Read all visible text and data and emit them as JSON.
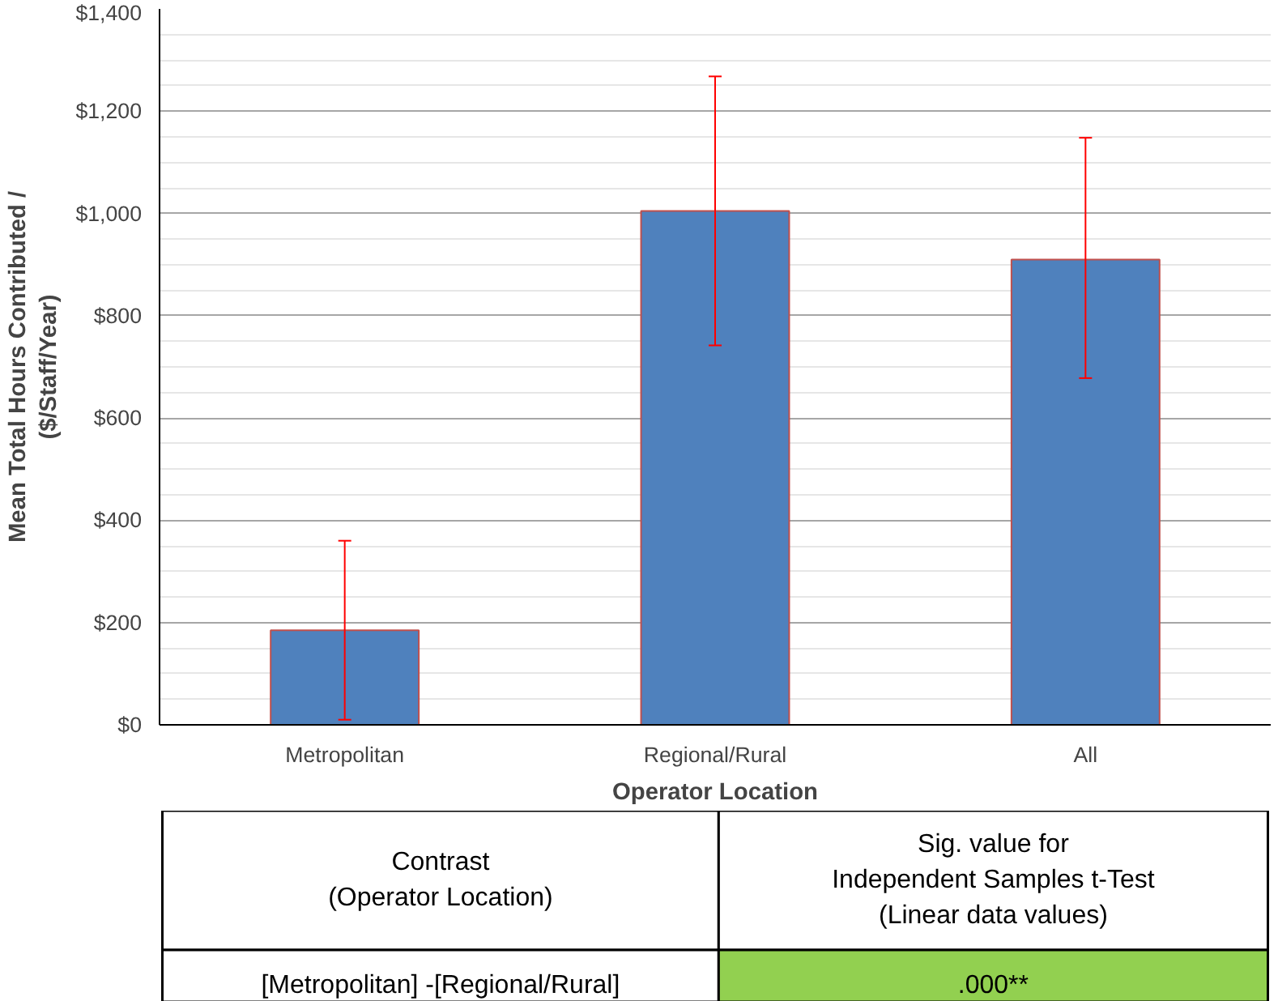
{
  "chart_data": {
    "type": "bar",
    "xlabel": "Operator Location",
    "ylabel": "Mean Total Hours Contributed /\n($/Staff/Year)",
    "categories": [
      "Metropolitan",
      "Regional/Rural",
      "All"
    ],
    "values": [
      185,
      1005,
      910
    ],
    "errors": [
      [
        10,
        360
      ],
      [
        742,
        1268
      ],
      [
        678,
        1148
      ]
    ],
    "color": "#4f81bd",
    "ylim": [
      0,
      1400
    ],
    "yticks": [
      {
        "value": 0,
        "label": "$0"
      },
      {
        "value": 200,
        "label": "$200"
      },
      {
        "value": 400,
        "label": "$400"
      },
      {
        "value": 600,
        "label": "$600"
      },
      {
        "value": 800,
        "label": "$800"
      },
      {
        "value": 1000,
        "label": "$1,000"
      },
      {
        "value": 1200,
        "label": "$1,200"
      },
      {
        "value": 1400,
        "label": "$1,400"
      }
    ],
    "grid": "y",
    "annotations": [
      "Contrast\n(Operator Location)",
      "Sig. value for\nIndependent Samples t-Test\n(Linear data values)",
      "[Metropolitan] -[Regional/Rural]",
      ".000**"
    ]
  }
}
